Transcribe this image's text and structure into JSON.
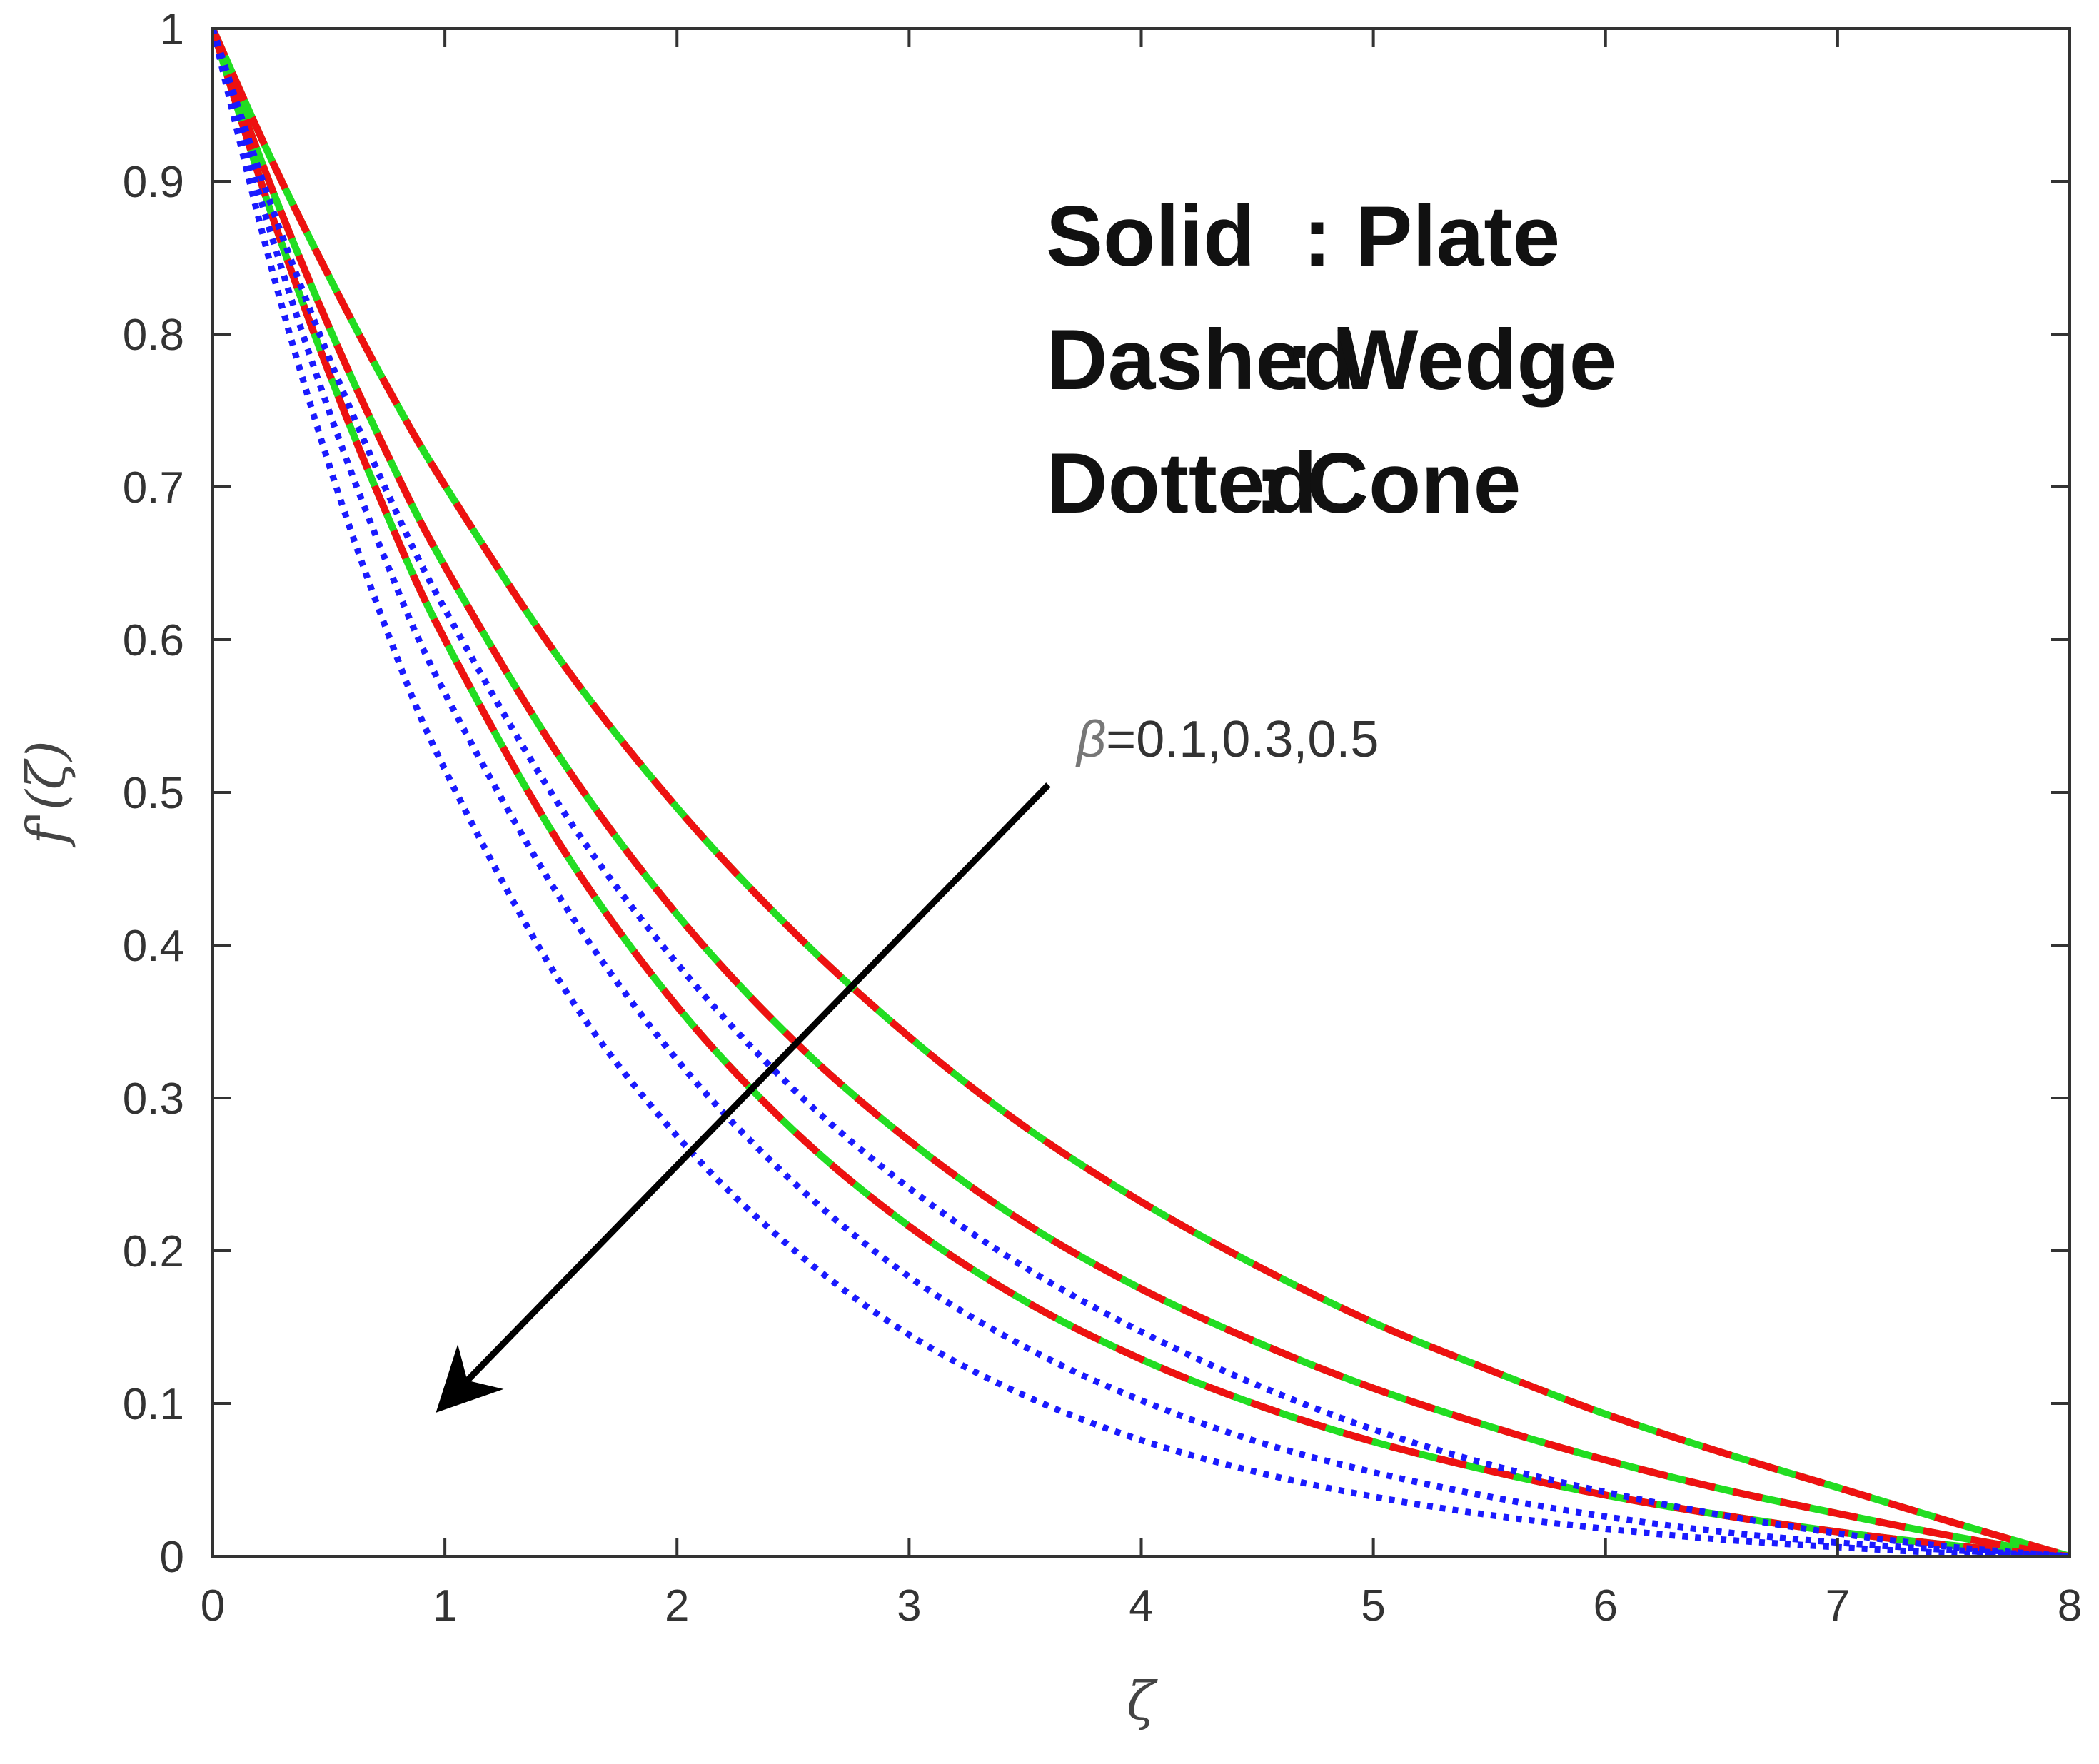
{
  "chart_data": {
    "type": "line",
    "title": "",
    "xlabel": "ζ",
    "ylabel": "f'(ζ)",
    "xlim": [
      0,
      8
    ],
    "ylim": [
      0,
      1
    ],
    "xticks": [
      "0",
      "1",
      "2",
      "3",
      "4",
      "5",
      "6",
      "7",
      "8"
    ],
    "yticks": [
      "0",
      "0.1",
      "0.2",
      "0.3",
      "0.4",
      "0.5",
      "0.6",
      "0.7",
      "0.8",
      "0.9",
      "1"
    ],
    "grid": false,
    "legend_box": {
      "line1_key": "Solid",
      "line1_val": ": Plate",
      "line2_key": "Dashed",
      "line2_val": ": Wedge",
      "line3_key": "Dotted",
      "line3_val": ": Cone"
    },
    "annotation": {
      "symbol": "β",
      "text": "=0.1,0.3,0.5",
      "arrow_from": [
        3.6,
        0.505
      ],
      "arrow_to": [
        1.0,
        0.1
      ]
    },
    "colors": {
      "solid": "#22dd22",
      "dashed": "#ee1111",
      "dotted": "#1a1aff"
    },
    "series": [
      {
        "style": "solid",
        "x": [
          0,
          0.25,
          0.5,
          0.75,
          1,
          1.5,
          2,
          2.5,
          3,
          3.5,
          4,
          4.5,
          5,
          5.5,
          6,
          6.5,
          7,
          7.5,
          8
        ],
        "y": [
          1,
          0.915,
          0.838,
          0.766,
          0.701,
          0.586,
          0.49,
          0.409,
          0.34,
          0.281,
          0.232,
          0.19,
          0.153,
          0.122,
          0.093,
          0.068,
          0.045,
          0.022,
          0
        ]
      },
      {
        "style": "solid",
        "x": [
          0,
          0.25,
          0.5,
          0.75,
          1,
          1.5,
          2,
          2.5,
          3,
          3.5,
          4,
          4.5,
          5,
          5.5,
          6,
          6.5,
          7,
          7.5,
          8
        ],
        "y": [
          1,
          0.897,
          0.805,
          0.722,
          0.648,
          0.522,
          0.42,
          0.338,
          0.272,
          0.218,
          0.175,
          0.14,
          0.11,
          0.085,
          0.063,
          0.044,
          0.028,
          0.013,
          0
        ]
      },
      {
        "style": "solid",
        "x": [
          0,
          0.25,
          0.5,
          0.75,
          1,
          1.5,
          2,
          2.5,
          3,
          3.5,
          4,
          4.5,
          5,
          5.5,
          6,
          6.5,
          7,
          7.5,
          8
        ],
        "y": [
          1,
          0.88,
          0.775,
          0.682,
          0.6,
          0.465,
          0.36,
          0.279,
          0.216,
          0.167,
          0.129,
          0.099,
          0.075,
          0.056,
          0.04,
          0.027,
          0.016,
          0.007,
          0
        ]
      },
      {
        "style": "dashed",
        "x": [
          0,
          0.25,
          0.5,
          0.75,
          1,
          1.5,
          2,
          2.5,
          3,
          3.5,
          4,
          4.5,
          5,
          5.5,
          6,
          6.5,
          7,
          7.5,
          8
        ],
        "y": [
          1,
          0.915,
          0.838,
          0.766,
          0.701,
          0.586,
          0.49,
          0.409,
          0.34,
          0.281,
          0.232,
          0.19,
          0.153,
          0.122,
          0.093,
          0.068,
          0.045,
          0.022,
          0
        ]
      },
      {
        "style": "dashed",
        "x": [
          0,
          0.25,
          0.5,
          0.75,
          1,
          1.5,
          2,
          2.5,
          3,
          3.5,
          4,
          4.5,
          5,
          5.5,
          6,
          6.5,
          7,
          7.5,
          8
        ],
        "y": [
          1,
          0.897,
          0.805,
          0.722,
          0.648,
          0.522,
          0.42,
          0.338,
          0.272,
          0.218,
          0.175,
          0.14,
          0.11,
          0.085,
          0.063,
          0.044,
          0.028,
          0.013,
          0
        ]
      },
      {
        "style": "dashed",
        "x": [
          0,
          0.25,
          0.5,
          0.75,
          1,
          1.5,
          2,
          2.5,
          3,
          3.5,
          4,
          4.5,
          5,
          5.5,
          6,
          6.5,
          7,
          7.5,
          8
        ],
        "y": [
          1,
          0.88,
          0.775,
          0.682,
          0.6,
          0.465,
          0.36,
          0.279,
          0.216,
          0.167,
          0.129,
          0.099,
          0.075,
          0.056,
          0.04,
          0.027,
          0.016,
          0.007,
          0
        ]
      },
      {
        "style": "dotted",
        "x": [
          0,
          0.25,
          0.5,
          0.75,
          1,
          1.5,
          2,
          2.5,
          3,
          3.5,
          4,
          4.5,
          5,
          5.5,
          6,
          6.5,
          7,
          7.5,
          8
        ],
        "y": [
          1,
          0.885,
          0.785,
          0.697,
          0.62,
          0.49,
          0.388,
          0.306,
          0.241,
          0.189,
          0.147,
          0.112,
          0.083,
          0.06,
          0.042,
          0.027,
          0.015,
          0.006,
          0
        ]
      },
      {
        "style": "dotted",
        "x": [
          0,
          0.25,
          0.5,
          0.75,
          1,
          1.5,
          2,
          2.5,
          3,
          3.5,
          4,
          4.5,
          5,
          5.5,
          6,
          6.5,
          7,
          7.5,
          8
        ],
        "y": [
          1,
          0.866,
          0.75,
          0.65,
          0.565,
          0.43,
          0.325,
          0.245,
          0.183,
          0.137,
          0.102,
          0.075,
          0.055,
          0.039,
          0.026,
          0.016,
          0.009,
          0.004,
          0
        ]
      },
      {
        "style": "dotted",
        "x": [
          0,
          0.25,
          0.5,
          0.75,
          1,
          1.5,
          2,
          2.5,
          3,
          3.5,
          4,
          4.5,
          5,
          5.5,
          6,
          6.5,
          7,
          7.5,
          8
        ],
        "y": [
          1,
          0.845,
          0.715,
          0.606,
          0.515,
          0.375,
          0.275,
          0.201,
          0.145,
          0.105,
          0.076,
          0.055,
          0.039,
          0.027,
          0.018,
          0.011,
          0.006,
          0.002,
          0
        ]
      }
    ]
  }
}
